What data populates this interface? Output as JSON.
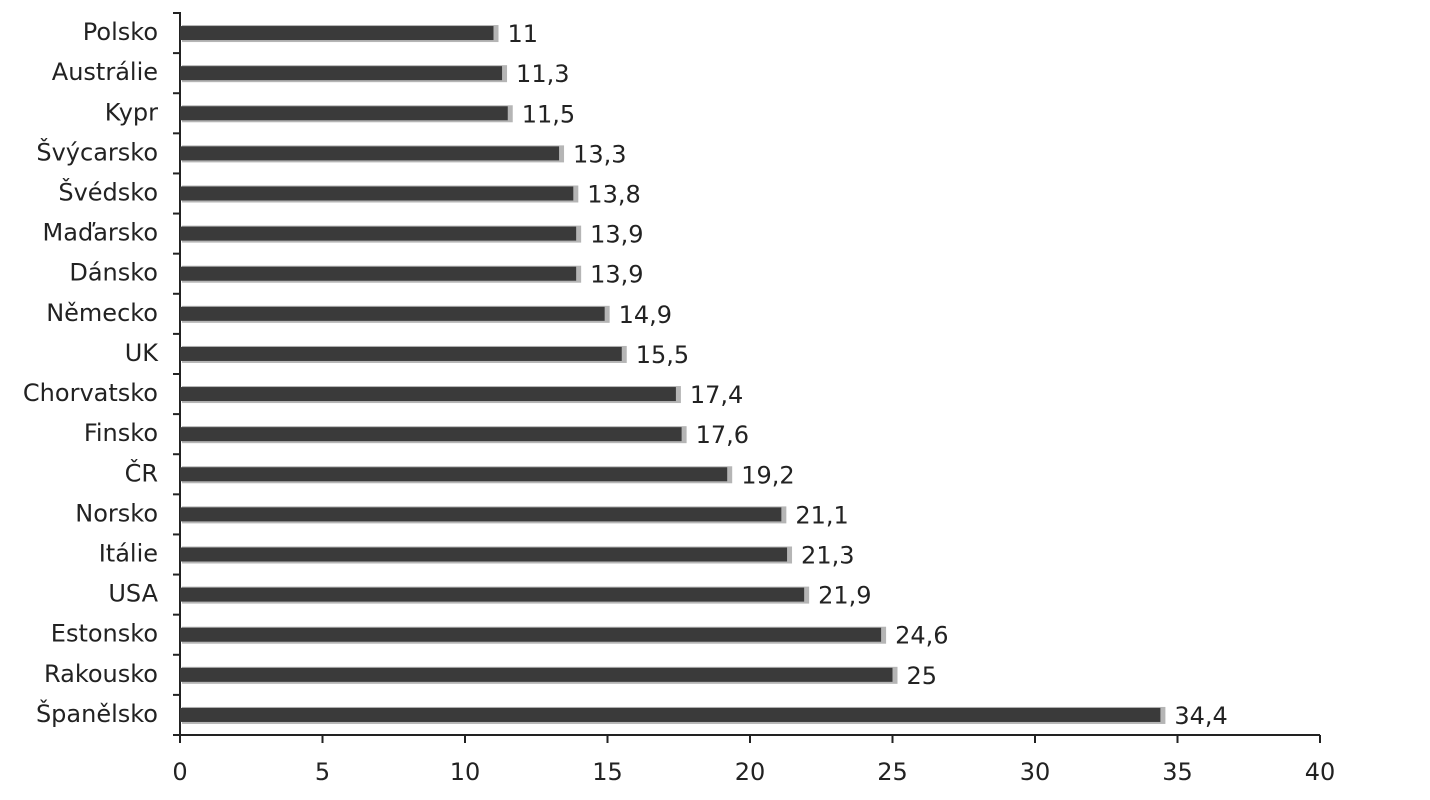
{
  "chart_data": {
    "type": "bar",
    "orientation": "horizontal",
    "categories": [
      "Polsko",
      "Austrálie",
      "Kypr",
      "Švýcarsko",
      "Švédsko",
      "Maďarsko",
      "Dánsko",
      "Německo",
      "UK",
      "Chorvatsko",
      "Finsko",
      "ČR",
      "Norsko",
      "Itálie",
      "USA",
      "Estonsko",
      "Rakousko",
      "Španělsko"
    ],
    "values": [
      11,
      11.3,
      11.5,
      13.3,
      13.8,
      13.9,
      13.9,
      14.9,
      15.5,
      17.4,
      17.6,
      19.2,
      21.1,
      21.3,
      21.9,
      24.6,
      25,
      34.4
    ],
    "value_labels": [
      "11",
      "11,3",
      "11,5",
      "13,3",
      "13,8",
      "13,9",
      "13,9",
      "14,9",
      "15,5",
      "17,4",
      "17,6",
      "19,2",
      "21,1",
      "21,3",
      "21,9",
      "24,6",
      "25",
      "34,4"
    ],
    "color": "#3a3a3a",
    "xlim": [
      0,
      40
    ],
    "xticks": [
      0,
      5,
      10,
      15,
      20,
      25,
      30,
      35,
      40
    ]
  }
}
